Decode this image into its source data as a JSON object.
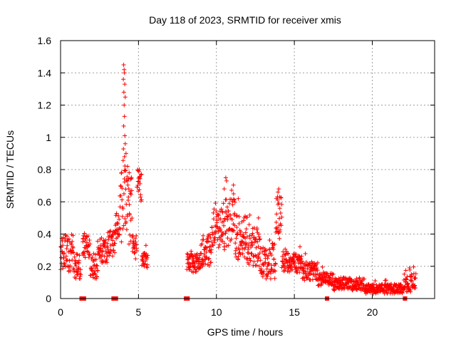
{
  "chart_data": {
    "type": "scatter",
    "title": "Day 118 of 2023, SRMTID for receiver xmis",
    "xlabel": "GPS time / hours",
    "ylabel": "SRMTID / TECUs",
    "xlim": [
      0,
      24
    ],
    "ylim": [
      0,
      1.6
    ],
    "x_ticks": [
      0,
      5,
      10,
      15,
      20
    ],
    "x_tick_labels": [
      "0",
      "5",
      "10",
      "15",
      "20"
    ],
    "y_ticks": [
      0,
      0.2,
      0.4,
      0.6,
      0.8,
      1.0,
      1.2,
      1.4,
      1.6
    ],
    "y_tick_labels": [
      "0",
      "0.2",
      "0.4",
      "0.6",
      "0.8",
      "1",
      "1.2",
      "1.4",
      "1.6"
    ],
    "grid": true,
    "marker": "+",
    "series_color": "#ff0000",
    "segments": [
      {
        "t0": 0.0,
        "t1": 0.9,
        "base": 0.28,
        "amp": 0.12
      },
      {
        "t0": 0.9,
        "t1": 1.3,
        "base": 0.2,
        "amp": 0.08
      },
      {
        "t0": 1.4,
        "t1": 1.9,
        "base": 0.32,
        "amp": 0.07
      },
      {
        "t0": 1.9,
        "t1": 2.4,
        "base": 0.2,
        "amp": 0.08
      },
      {
        "t0": 2.4,
        "t1": 3.0,
        "base": 0.3,
        "amp": 0.08
      },
      {
        "t0": 3.0,
        "t1": 3.5,
        "base": 0.34,
        "amp": 0.08
      },
      {
        "t0": 3.5,
        "t1": 3.8,
        "base": 0.45,
        "amp": 0.08
      },
      {
        "t0": 3.8,
        "t1": 4.2,
        "base": 0.6,
        "amp": 0.25
      },
      {
        "t0": 4.2,
        "t1": 4.6,
        "base": 0.55,
        "amp": 0.22
      },
      {
        "t0": 4.6,
        "t1": 4.9,
        "base": 0.32,
        "amp": 0.08
      },
      {
        "t0": 4.9,
        "t1": 5.2,
        "base": 0.7,
        "amp": 0.1
      },
      {
        "t0": 5.2,
        "t1": 5.6,
        "base": 0.24,
        "amp": 0.05
      },
      {
        "t0": 8.1,
        "t1": 9.0,
        "base": 0.22,
        "amp": 0.06
      },
      {
        "t0": 9.0,
        "t1": 9.7,
        "base": 0.3,
        "amp": 0.1
      },
      {
        "t0": 9.7,
        "t1": 10.4,
        "base": 0.42,
        "amp": 0.14
      },
      {
        "t0": 10.4,
        "t1": 11.2,
        "base": 0.46,
        "amp": 0.16
      },
      {
        "t0": 11.2,
        "t1": 12.0,
        "base": 0.38,
        "amp": 0.14
      },
      {
        "t0": 12.0,
        "t1": 12.8,
        "base": 0.32,
        "amp": 0.12
      },
      {
        "t0": 12.8,
        "t1": 13.8,
        "base": 0.22,
        "amp": 0.1
      },
      {
        "t0": 13.8,
        "t1": 14.2,
        "base": 0.5,
        "amp": 0.14
      },
      {
        "t0": 14.2,
        "t1": 15.5,
        "base": 0.22,
        "amp": 0.06
      },
      {
        "t0": 15.5,
        "t1": 16.5,
        "base": 0.17,
        "amp": 0.06
      },
      {
        "t0": 16.5,
        "t1": 17.5,
        "base": 0.12,
        "amp": 0.04
      },
      {
        "t0": 17.5,
        "t1": 19.5,
        "base": 0.09,
        "amp": 0.04
      },
      {
        "t0": 19.5,
        "t1": 22.0,
        "base": 0.06,
        "amp": 0.03
      },
      {
        "t0": 22.0,
        "t1": 22.8,
        "base": 0.1,
        "amp": 0.06
      }
    ],
    "spikes": [
      {
        "x": 4.05,
        "y": 1.45
      },
      {
        "x": 4.08,
        "y": 1.42
      },
      {
        "x": 4.1,
        "y": 1.4
      },
      {
        "x": 4.03,
        "y": 1.36
      },
      {
        "x": 4.12,
        "y": 1.33
      },
      {
        "x": 4.06,
        "y": 1.28
      },
      {
        "x": 4.15,
        "y": 1.25
      },
      {
        "x": 4.08,
        "y": 1.2
      },
      {
        "x": 4.1,
        "y": 1.13
      },
      {
        "x": 4.05,
        "y": 1.07
      },
      {
        "x": 4.12,
        "y": 1.01
      },
      {
        "x": 4.15,
        "y": 0.96
      },
      {
        "x": 4.2,
        "y": 0.9
      },
      {
        "x": 4.1,
        "y": 0.88
      },
      {
        "x": 4.3,
        "y": 0.82
      },
      {
        "x": 4.4,
        "y": 0.78
      },
      {
        "x": 4.5,
        "y": 0.74
      },
      {
        "x": 5.05,
        "y": 0.8
      },
      {
        "x": 10.6,
        "y": 0.75
      },
      {
        "x": 10.65,
        "y": 0.73
      },
      {
        "x": 10.5,
        "y": 0.68
      },
      {
        "x": 11.1,
        "y": 0.65
      },
      {
        "x": 11.4,
        "y": 0.62
      },
      {
        "x": 14.0,
        "y": 0.68
      },
      {
        "x": 13.95,
        "y": 0.66
      },
      {
        "x": 14.05,
        "y": 0.63
      },
      {
        "x": 12.7,
        "y": 0.5
      }
    ],
    "zero_markers": [
      1.35,
      1.5,
      3.4,
      3.55,
      8.05,
      8.15,
      17.1,
      22.1
    ]
  }
}
